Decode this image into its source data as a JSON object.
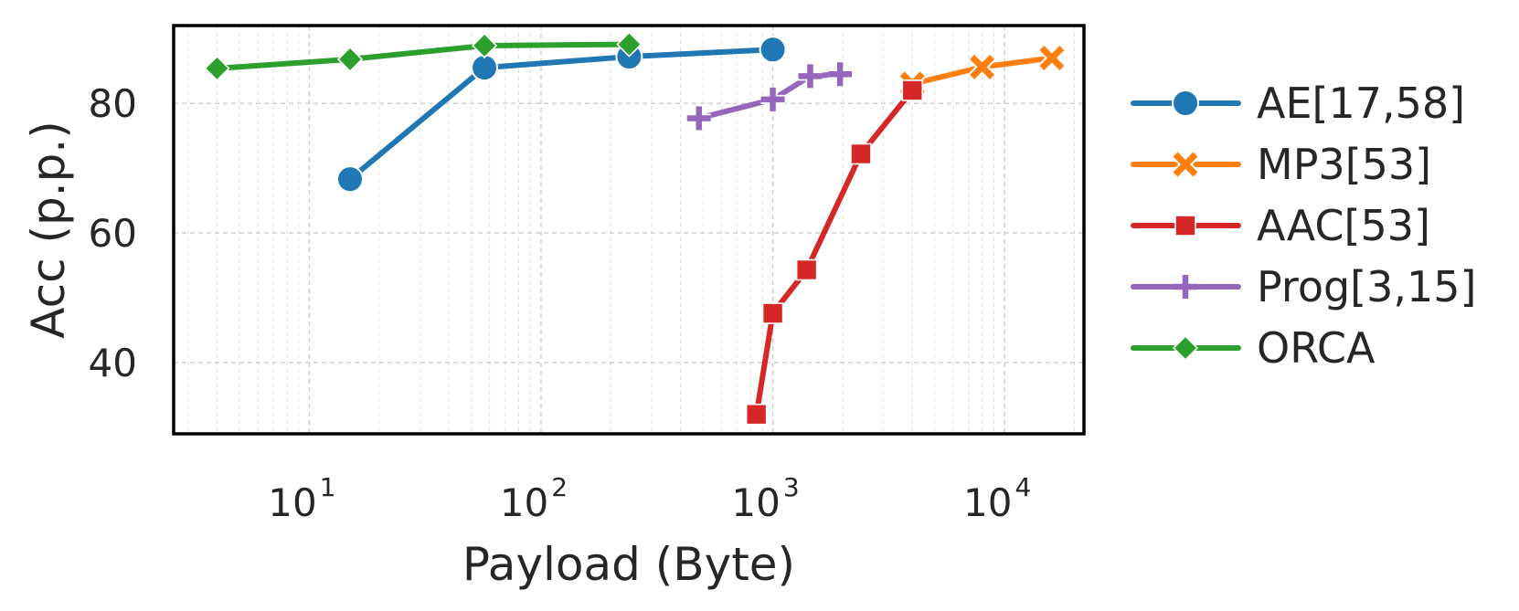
{
  "chart_data": {
    "type": "line",
    "xlabel": "Payload (Byte)",
    "ylabel": "Acc (p.p.)",
    "xscale": "log",
    "xlim": [
      2.6,
      22000
    ],
    "ylim": [
      29,
      92
    ],
    "x_ticks": [
      {
        "value": 10,
        "base": "10",
        "exp": "1"
      },
      {
        "value": 100,
        "base": "10",
        "exp": "2"
      },
      {
        "value": 1000,
        "base": "10",
        "exp": "3"
      },
      {
        "value": 10000,
        "base": "10",
        "exp": "4"
      }
    ],
    "y_ticks": [
      40,
      60,
      80
    ],
    "grid": true,
    "legend_placement": "outside-right",
    "series": [
      {
        "name": "AE[17,58]",
        "color": "#1f77b4",
        "marker": "circle",
        "x": [
          15,
          57,
          240,
          1000
        ],
        "y": [
          68.3,
          85.5,
          87.2,
          88.3
        ]
      },
      {
        "name": "MP3[53]",
        "color": "#ff7f0e",
        "marker": "x",
        "x": [
          4000,
          8000,
          16000
        ],
        "y": [
          83.0,
          85.6,
          87.0
        ]
      },
      {
        "name": "AAC[53]",
        "color": "#d62728",
        "marker": "square",
        "x": [
          850,
          1000,
          1400,
          2400,
          4000
        ],
        "y": [
          32.0,
          47.6,
          54.3,
          72.2,
          82.0
        ]
      },
      {
        "name": "Prog[3,15]",
        "color": "#9467bd",
        "marker": "plus",
        "x": [
          480,
          1000,
          1450,
          1950
        ],
        "y": [
          77.7,
          80.6,
          84.2,
          84.5
        ]
      },
      {
        "name": "ORCA",
        "color": "#2ca02c",
        "marker": "diamond",
        "x": [
          4,
          15,
          57,
          240
        ],
        "y": [
          85.4,
          86.8,
          88.9,
          89.1
        ]
      }
    ]
  }
}
